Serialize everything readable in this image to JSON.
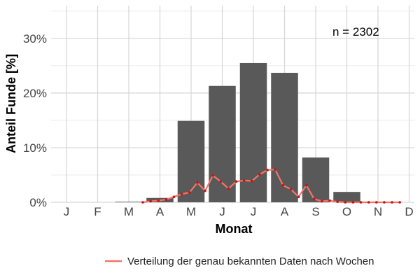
{
  "chart_data": {
    "type": "bar",
    "xlabel": "Monat",
    "ylabel": "Anteil Funde [%]",
    "annotation": "n = 2302",
    "categories": [
      "J",
      "F",
      "M",
      "A",
      "M",
      "J",
      "J",
      "A",
      "S",
      "O",
      "N",
      "D"
    ],
    "values": [
      0,
      0,
      0.1,
      0.8,
      14.9,
      21.3,
      25.5,
      23.7,
      8.2,
      1.9,
      0,
      0
    ],
    "ylim": [
      0,
      36
    ],
    "yticks": [
      0,
      10,
      20,
      30
    ],
    "ytick_labels": [
      "0%",
      "10%",
      "20%",
      "30%"
    ],
    "grid": true,
    "bar_color": "#595959",
    "line_series": {
      "name": "Verteilung der genau bekannten Daten nach Wochen",
      "color": "#f0766a",
      "point_color": "#cc1111",
      "x_month_positions": [
        3.45,
        3.7,
        3.95,
        4.2,
        4.45,
        4.7,
        4.95,
        5.2,
        5.45,
        5.7,
        5.95,
        6.2,
        6.45,
        6.7,
        6.95,
        7.2,
        7.45,
        7.7,
        7.95,
        8.2,
        8.45,
        8.7,
        8.95,
        9.2,
        9.45,
        9.7,
        9.95,
        10.2,
        10.45,
        10.7,
        10.95,
        11.2,
        11.45,
        11.7
      ],
      "values": [
        0,
        0.2,
        0.3,
        0.5,
        1.0,
        1.5,
        1.8,
        3.6,
        2.1,
        4.9,
        3.8,
        2.5,
        3.8,
        4.0,
        3.9,
        5.1,
        5.9,
        6.0,
        3.1,
        2.4,
        1.0,
        3.1,
        0.6,
        0.2,
        0.3,
        0.1,
        0,
        0,
        0,
        0,
        0,
        0,
        0,
        0
      ]
    },
    "legend": {
      "position": "bottom-right",
      "entries": [
        "Verteilung der genau bekannten Daten nach Wochen"
      ]
    }
  }
}
